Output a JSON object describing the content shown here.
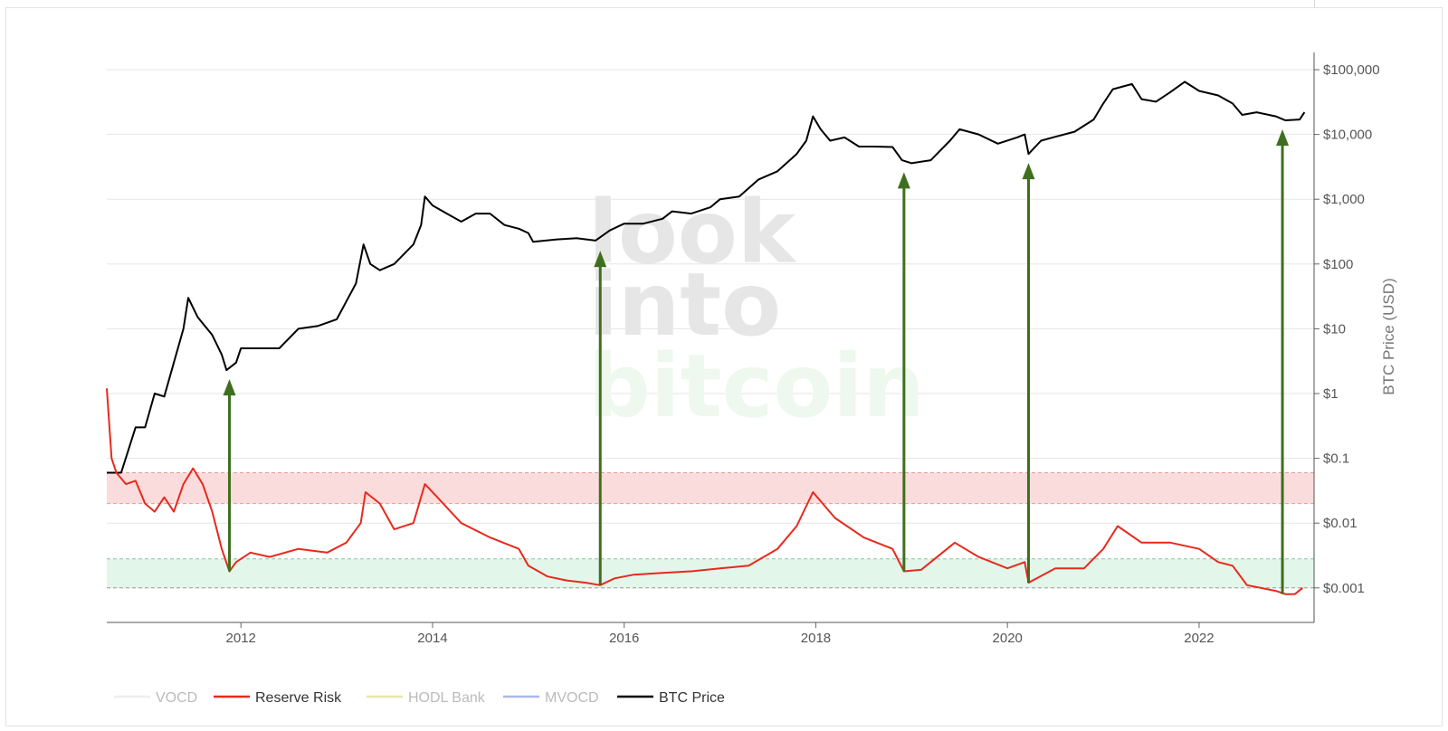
{
  "chart_data": {
    "type": "line",
    "y_scale": "log",
    "grid": true,
    "legend_position": "bottom",
    "ylabel": "BTC Price (USD)",
    "x_ticks": [
      "2012",
      "2014",
      "2016",
      "2018",
      "2020",
      "2022"
    ],
    "y_ticks": [
      "$0.001",
      "$0.01",
      "$0.1",
      "$1",
      "$10",
      "$100",
      "$1,000",
      "$10,000",
      "$100,000"
    ],
    "ylim": [
      0.0005,
      150000
    ],
    "xlim": [
      2010.6,
      2023.2
    ],
    "bands": [
      {
        "name": "high-risk",
        "color": "#f8b4b4",
        "y0": 0.02,
        "y1": 0.06
      },
      {
        "name": "low-risk",
        "color": "#c9efd6",
        "y0": 0.001,
        "y1": 0.0028
      }
    ],
    "series": [
      {
        "name": "BTC Price",
        "color": "#000000",
        "points": [
          [
            2010.6,
            0.06
          ],
          [
            2010.75,
            0.06
          ],
          [
            2010.9,
            0.3
          ],
          [
            2011.0,
            0.3
          ],
          [
            2011.1,
            1.0
          ],
          [
            2011.2,
            0.9
          ],
          [
            2011.3,
            3
          ],
          [
            2011.4,
            10
          ],
          [
            2011.45,
            30
          ],
          [
            2011.55,
            15
          ],
          [
            2011.7,
            8
          ],
          [
            2011.8,
            4
          ],
          [
            2011.85,
            2.3
          ],
          [
            2011.95,
            3
          ],
          [
            2012.0,
            5
          ],
          [
            2012.2,
            5
          ],
          [
            2012.4,
            5
          ],
          [
            2012.6,
            10
          ],
          [
            2012.8,
            11
          ],
          [
            2013.0,
            14
          ],
          [
            2013.2,
            50
          ],
          [
            2013.28,
            200
          ],
          [
            2013.35,
            100
          ],
          [
            2013.45,
            80
          ],
          [
            2013.6,
            100
          ],
          [
            2013.8,
            200
          ],
          [
            2013.88,
            400
          ],
          [
            2013.92,
            1100
          ],
          [
            2014.0,
            800
          ],
          [
            2014.15,
            600
          ],
          [
            2014.3,
            450
          ],
          [
            2014.45,
            600
          ],
          [
            2014.6,
            600
          ],
          [
            2014.75,
            400
          ],
          [
            2014.9,
            350
          ],
          [
            2015.0,
            300
          ],
          [
            2015.05,
            220
          ],
          [
            2015.3,
            240
          ],
          [
            2015.5,
            250
          ],
          [
            2015.7,
            230
          ],
          [
            2015.85,
            330
          ],
          [
            2016.0,
            420
          ],
          [
            2016.2,
            420
          ],
          [
            2016.4,
            500
          ],
          [
            2016.5,
            650
          ],
          [
            2016.7,
            600
          ],
          [
            2016.9,
            750
          ],
          [
            2017.0,
            1000
          ],
          [
            2017.2,
            1100
          ],
          [
            2017.4,
            2000
          ],
          [
            2017.6,
            2700
          ],
          [
            2017.8,
            5000
          ],
          [
            2017.9,
            8000
          ],
          [
            2017.97,
            19000
          ],
          [
            2018.05,
            12000
          ],
          [
            2018.15,
            8000
          ],
          [
            2018.3,
            9000
          ],
          [
            2018.45,
            6500
          ],
          [
            2018.6,
            6500
          ],
          [
            2018.8,
            6400
          ],
          [
            2018.9,
            4000
          ],
          [
            2019.0,
            3600
          ],
          [
            2019.2,
            4000
          ],
          [
            2019.4,
            8000
          ],
          [
            2019.5,
            12000
          ],
          [
            2019.7,
            10000
          ],
          [
            2019.9,
            7200
          ],
          [
            2020.1,
            9000
          ],
          [
            2020.18,
            10000
          ],
          [
            2020.22,
            5000
          ],
          [
            2020.35,
            8000
          ],
          [
            2020.5,
            9200
          ],
          [
            2020.7,
            11000
          ],
          [
            2020.9,
            17000
          ],
          [
            2021.0,
            30000
          ],
          [
            2021.1,
            50000
          ],
          [
            2021.3,
            60000
          ],
          [
            2021.4,
            35000
          ],
          [
            2021.55,
            32000
          ],
          [
            2021.7,
            45000
          ],
          [
            2021.85,
            65000
          ],
          [
            2022.0,
            47000
          ],
          [
            2022.2,
            40000
          ],
          [
            2022.35,
            30000
          ],
          [
            2022.45,
            20000
          ],
          [
            2022.6,
            22000
          ],
          [
            2022.8,
            19000
          ],
          [
            2022.9,
            16500
          ],
          [
            2023.05,
            17000
          ],
          [
            2023.1,
            22000
          ]
        ]
      },
      {
        "name": "Reserve Risk",
        "color": "#e8291d",
        "points": [
          [
            2010.6,
            1.2
          ],
          [
            2010.65,
            0.1
          ],
          [
            2010.7,
            0.06
          ],
          [
            2010.8,
            0.04
          ],
          [
            2010.9,
            0.045
          ],
          [
            2011.0,
            0.02
          ],
          [
            2011.1,
            0.015
          ],
          [
            2011.2,
            0.025
          ],
          [
            2011.3,
            0.015
          ],
          [
            2011.4,
            0.04
          ],
          [
            2011.5,
            0.07
          ],
          [
            2011.6,
            0.04
          ],
          [
            2011.7,
            0.015
          ],
          [
            2011.8,
            0.004
          ],
          [
            2011.88,
            0.0018
          ],
          [
            2011.95,
            0.0025
          ],
          [
            2012.1,
            0.0035
          ],
          [
            2012.3,
            0.003
          ],
          [
            2012.6,
            0.004
          ],
          [
            2012.9,
            0.0035
          ],
          [
            2013.1,
            0.005
          ],
          [
            2013.25,
            0.01
          ],
          [
            2013.3,
            0.03
          ],
          [
            2013.45,
            0.02
          ],
          [
            2013.6,
            0.008
          ],
          [
            2013.8,
            0.01
          ],
          [
            2013.92,
            0.04
          ],
          [
            2014.05,
            0.025
          ],
          [
            2014.3,
            0.01
          ],
          [
            2014.6,
            0.006
          ],
          [
            2014.9,
            0.004
          ],
          [
            2015.0,
            0.0022
          ],
          [
            2015.2,
            0.0015
          ],
          [
            2015.4,
            0.0013
          ],
          [
            2015.6,
            0.0012
          ],
          [
            2015.75,
            0.0011
          ],
          [
            2015.9,
            0.0014
          ],
          [
            2016.1,
            0.0016
          ],
          [
            2016.4,
            0.0017
          ],
          [
            2016.7,
            0.0018
          ],
          [
            2017.0,
            0.002
          ],
          [
            2017.3,
            0.0022
          ],
          [
            2017.6,
            0.004
          ],
          [
            2017.8,
            0.009
          ],
          [
            2017.97,
            0.03
          ],
          [
            2018.2,
            0.012
          ],
          [
            2018.5,
            0.006
          ],
          [
            2018.8,
            0.004
          ],
          [
            2018.92,
            0.0018
          ],
          [
            2019.1,
            0.0019
          ],
          [
            2019.45,
            0.005
          ],
          [
            2019.7,
            0.003
          ],
          [
            2020.0,
            0.002
          ],
          [
            2020.18,
            0.0025
          ],
          [
            2020.22,
            0.0012
          ],
          [
            2020.5,
            0.002
          ],
          [
            2020.8,
            0.002
          ],
          [
            2021.0,
            0.004
          ],
          [
            2021.15,
            0.009
          ],
          [
            2021.4,
            0.005
          ],
          [
            2021.7,
            0.005
          ],
          [
            2022.0,
            0.004
          ],
          [
            2022.2,
            0.0025
          ],
          [
            2022.35,
            0.0022
          ],
          [
            2022.5,
            0.0011
          ],
          [
            2022.8,
            0.0009
          ],
          [
            2022.9,
            0.0008
          ],
          [
            2023.0,
            0.0008
          ],
          [
            2023.08,
            0.001
          ]
        ]
      },
      {
        "name": "VOCD",
        "color": "#eeeeee",
        "points": []
      },
      {
        "name": "HODL Bank",
        "color": "#e9e6a8",
        "points": []
      },
      {
        "name": "MVOCD",
        "color": "#a9b8f0",
        "points": []
      }
    ],
    "annotations": {
      "arrow_color": "#3f6f1e",
      "arrows": [
        {
          "x": 2011.88,
          "from_y": 0.0018,
          "to_y": 2.3
        },
        {
          "x": 2015.75,
          "from_y": 0.0011,
          "to_y": 220
        },
        {
          "x": 2018.92,
          "from_y": 0.0018,
          "to_y": 3600
        },
        {
          "x": 2020.22,
          "from_y": 0.0012,
          "to_y": 5000
        },
        {
          "x": 2022.87,
          "from_y": 0.0008,
          "to_y": 16500
        }
      ]
    }
  },
  "legend": [
    {
      "label": "VOCD",
      "color": "#eeeeee",
      "active": false
    },
    {
      "label": "Reserve Risk",
      "color": "#e8291d",
      "active": true
    },
    {
      "label": "HODL Bank",
      "color": "#e9e6a8",
      "active": false
    },
    {
      "label": "MVOCD",
      "color": "#a9b8f0",
      "active": false
    },
    {
      "label": "BTC Price",
      "color": "#000000",
      "active": true
    }
  ],
  "watermark": {
    "lines": [
      "look",
      "into",
      "bitcoin"
    ]
  }
}
